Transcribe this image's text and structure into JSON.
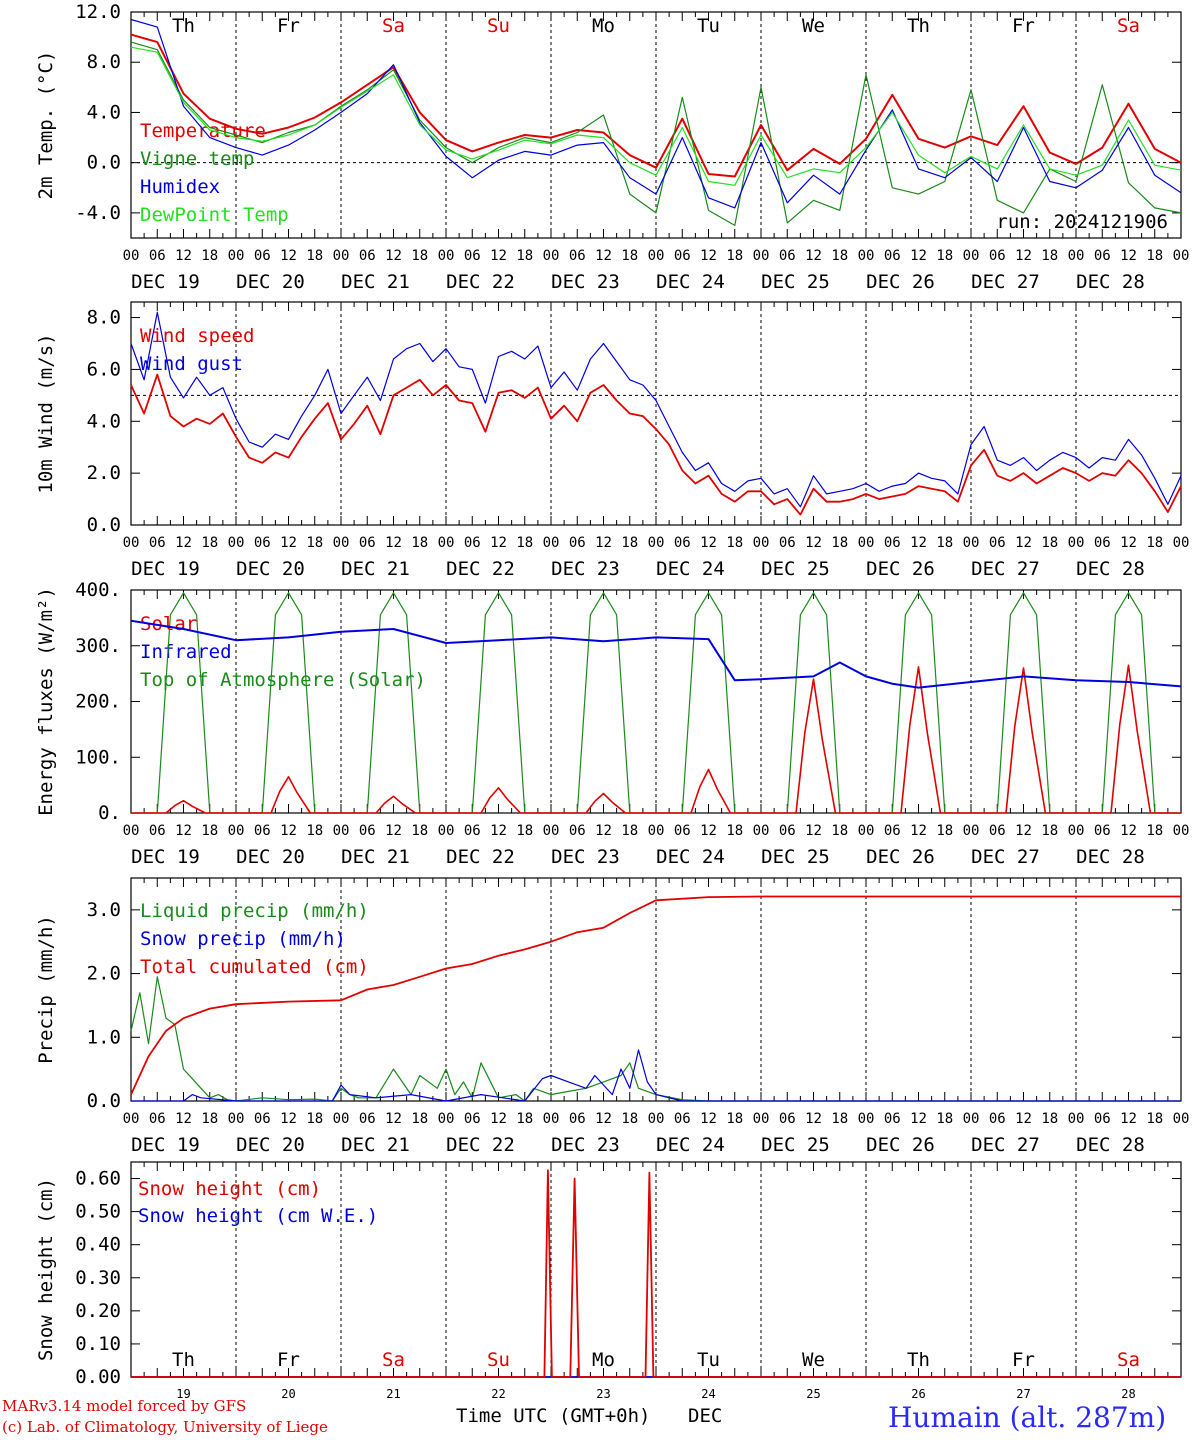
{
  "days": [
    "Th",
    "Fr",
    "Sa",
    "Su",
    "Mo",
    "Tu",
    "We",
    "Th",
    "Fr",
    "Sa"
  ],
  "weekend_color": "#e00000",
  "weekday_color": "#000000",
  "hour_labels": [
    "00",
    "06",
    "12",
    "18"
  ],
  "hour_end_label": "00",
  "date_labels": [
    "DEC 19",
    "DEC 20",
    "DEC 21",
    "DEC 22",
    "DEC 23",
    "DEC 24",
    "DEC 25",
    "DEC 26",
    "DEC 27",
    "DEC 28"
  ],
  "bottom_day_numbers": [
    "19",
    "20",
    "21",
    "22",
    "23",
    "24",
    "25",
    "26",
    "27",
    "28"
  ],
  "run_label": "run: 2024121906",
  "xlabel": "Time UTC (GMT+0h)",
  "xlabel_month": "DEC",
  "footer": {
    "line1": "MARv3.14 model forced by GFS",
    "line2": "(c) Lab. of Climatology, University of Liege",
    "station": "Humain (alt. 287m)"
  },
  "chart_data": [
    {
      "type": "line",
      "ylabel": "2m Temp. (°C)",
      "ylim": [
        -6,
        12
      ],
      "yticks": [
        "12.0",
        "8.0",
        "4.0",
        "0.0",
        "-4.0"
      ],
      "ytick_values": [
        12,
        8,
        4,
        0,
        -4
      ],
      "ref_line": 0,
      "x_hours": [
        0,
        6,
        12,
        18,
        24,
        30,
        36,
        42,
        48,
        54,
        60,
        66,
        72,
        78,
        84,
        90,
        96,
        102,
        108,
        114,
        120,
        126,
        132,
        138,
        144,
        150,
        156,
        162,
        168,
        174,
        180,
        186,
        192,
        198,
        204,
        210,
        216,
        222,
        228,
        234,
        240
      ],
      "series": [
        {
          "name": "Temperature",
          "color": "#e00000",
          "values": [
            10.2,
            9.6,
            5.5,
            3.5,
            2.7,
            2.3,
            2.8,
            3.6,
            4.8,
            6.2,
            7.6,
            4.0,
            1.8,
            0.9,
            1.6,
            2.2,
            2.0,
            2.6,
            2.4,
            0.6,
            -0.4,
            3.5,
            -0.9,
            -1.1,
            3.0,
            -0.6,
            1.1,
            -0.1,
            1.9,
            5.4,
            1.9,
            1.2,
            2.1,
            1.4,
            4.5,
            0.8,
            -0.1,
            1.2,
            4.7,
            1.1,
            0.0
          ]
        },
        {
          "name": "Vigne temp",
          "color": "#1a8a1a",
          "values": [
            9.6,
            9.0,
            5.0,
            2.8,
            2.2,
            1.6,
            2.4,
            3.0,
            4.5,
            5.8,
            7.4,
            3.4,
            1.2,
            0.0,
            1.2,
            2.0,
            1.6,
            2.4,
            3.8,
            -2.5,
            -4.0,
            5.2,
            -3.8,
            -5.0,
            6.0,
            -4.8,
            -3.0,
            -3.8,
            7.0,
            -2.0,
            -2.5,
            -1.5,
            5.8,
            -3.0,
            -4.0,
            -0.5,
            -1.5,
            6.2,
            -1.6,
            -3.6,
            -4.0
          ]
        },
        {
          "name": "Humidex",
          "color": "#0000dd",
          "values": [
            11.4,
            10.8,
            4.5,
            2.0,
            1.2,
            0.6,
            1.4,
            2.6,
            4.0,
            5.5,
            7.8,
            3.2,
            0.5,
            -1.2,
            0.2,
            0.9,
            0.6,
            1.4,
            1.6,
            -1.2,
            -2.5,
            2.0,
            -2.8,
            -3.6,
            1.6,
            -3.2,
            -1.0,
            -2.5,
            1.0,
            4.2,
            -0.5,
            -1.2,
            0.4,
            -1.5,
            2.8,
            -1.5,
            -2.0,
            -0.6,
            2.8,
            -1.0,
            -2.4
          ]
        },
        {
          "name": "DewPoint Temp",
          "color": "#22e022",
          "values": [
            9.2,
            8.8,
            4.8,
            2.6,
            2.0,
            1.7,
            2.2,
            3.0,
            4.4,
            5.7,
            7.0,
            3.0,
            1.0,
            0.3,
            1.0,
            1.8,
            1.5,
            2.2,
            2.0,
            0.0,
            -1.0,
            2.8,
            -1.5,
            -1.8,
            2.2,
            -1.2,
            -0.5,
            -0.8,
            1.2,
            4.0,
            0.6,
            -0.8,
            0.5,
            -0.5,
            3.0,
            -0.5,
            -1.0,
            -0.2,
            3.4,
            -0.2,
            -0.6
          ]
        }
      ]
    },
    {
      "type": "line",
      "ylabel": "10m Wind (m/s)",
      "ylim": [
        0,
        8.6
      ],
      "yticks": [
        "8.0",
        "6.0",
        "4.0",
        "2.0",
        "0.0"
      ],
      "ytick_values": [
        8,
        6,
        4,
        2,
        0
      ],
      "ref_line": 5,
      "x_hours": [
        0,
        3,
        6,
        9,
        12,
        15,
        18,
        21,
        24,
        27,
        30,
        33,
        36,
        39,
        42,
        45,
        48,
        51,
        54,
        57,
        60,
        63,
        66,
        69,
        72,
        75,
        78,
        81,
        84,
        87,
        90,
        93,
        96,
        99,
        102,
        105,
        108,
        111,
        114,
        117,
        120,
        123,
        126,
        129,
        132,
        135,
        138,
        141,
        144,
        147,
        150,
        153,
        156,
        159,
        162,
        165,
        168,
        171,
        174,
        177,
        180,
        183,
        186,
        189,
        192,
        195,
        198,
        201,
        204,
        207,
        210,
        213,
        216,
        219,
        222,
        225,
        228,
        231,
        234,
        237,
        240
      ],
      "series": [
        {
          "name": "Wind speed",
          "color": "#e00000",
          "values": [
            5.4,
            4.3,
            5.8,
            4.2,
            3.8,
            4.1,
            3.9,
            4.3,
            3.4,
            2.6,
            2.4,
            2.8,
            2.6,
            3.4,
            4.1,
            4.7,
            3.3,
            3.9,
            4.6,
            3.5,
            5.0,
            5.3,
            5.6,
            5.0,
            5.4,
            4.8,
            4.7,
            3.6,
            5.1,
            5.2,
            4.9,
            5.3,
            4.1,
            4.6,
            4.0,
            5.1,
            5.4,
            4.8,
            4.3,
            4.2,
            3.7,
            3.1,
            2.1,
            1.6,
            1.9,
            1.2,
            0.9,
            1.3,
            1.3,
            0.8,
            1.0,
            0.4,
            1.4,
            0.9,
            0.9,
            1.0,
            1.2,
            1.0,
            1.1,
            1.2,
            1.5,
            1.4,
            1.3,
            0.9,
            2.3,
            2.9,
            1.9,
            1.7,
            2.0,
            1.6,
            1.9,
            2.2,
            2.0,
            1.7,
            2.0,
            1.9,
            2.5,
            2.0,
            1.3,
            0.5,
            1.5
          ]
        },
        {
          "name": "Wind gust",
          "color": "#0000dd",
          "values": [
            7.0,
            5.6,
            8.2,
            5.7,
            4.9,
            5.7,
            5.0,
            5.3,
            4.1,
            3.2,
            3.0,
            3.5,
            3.3,
            4.2,
            5.0,
            6.0,
            4.3,
            5.0,
            5.7,
            4.8,
            6.4,
            6.8,
            7.0,
            6.3,
            6.8,
            6.1,
            6.0,
            4.7,
            6.5,
            6.7,
            6.4,
            6.9,
            5.3,
            5.9,
            5.2,
            6.4,
            7.0,
            6.3,
            5.6,
            5.4,
            4.8,
            3.8,
            2.8,
            2.1,
            2.4,
            1.6,
            1.3,
            1.7,
            1.8,
            1.2,
            1.4,
            0.7,
            1.9,
            1.2,
            1.3,
            1.4,
            1.6,
            1.3,
            1.5,
            1.6,
            2.0,
            1.8,
            1.7,
            1.2,
            3.1,
            3.8,
            2.5,
            2.3,
            2.6,
            2.1,
            2.5,
            2.8,
            2.6,
            2.2,
            2.6,
            2.5,
            3.3,
            2.7,
            1.8,
            0.8,
            1.9
          ]
        }
      ]
    },
    {
      "type": "line",
      "ylabel": "Energy fluxes (W/m²)",
      "ylim": [
        0,
        400
      ],
      "yticks": [
        "400.",
        "300.",
        "200.",
        "100.",
        "0."
      ],
      "ytick_values": [
        400,
        300,
        200,
        100,
        0
      ],
      "series": [
        {
          "name": "Solar",
          "color": "#e00000",
          "daily_peak": [
            22,
            65,
            30,
            45,
            35,
            78,
            240,
            262,
            260,
            265
          ]
        },
        {
          "name": "Infrared",
          "color": "#0000dd",
          "x_hours": [
            0,
            12,
            24,
            36,
            48,
            60,
            72,
            84,
            96,
            108,
            120,
            132,
            138,
            144,
            156,
            162,
            168,
            174,
            180,
            192,
            204,
            216,
            228,
            240
          ],
          "values": [
            345,
            330,
            310,
            315,
            325,
            330,
            305,
            310,
            315,
            308,
            315,
            312,
            238,
            240,
            245,
            270,
            245,
            232,
            225,
            235,
            245,
            238,
            235,
            227
          ]
        },
        {
          "name": "Top of Atmosphere (Solar)",
          "color": "#1a8a1a",
          "daily_peak": [
            395,
            395,
            395,
            395,
            395,
            395,
            395,
            395,
            395,
            395
          ]
        }
      ]
    },
    {
      "type": "line",
      "ylabel": "Precip (mm/h)",
      "ylim": [
        0,
        3.5
      ],
      "yticks": [
        "3.0",
        "2.0",
        "1.0",
        "0.0"
      ],
      "ytick_values": [
        3,
        2,
        1,
        0
      ],
      "series": [
        {
          "name": "Liquid precip (mm/h)",
          "color": "#1a8a1a",
          "x_hours": [
            0,
            2,
            4,
            6,
            8,
            10,
            12,
            14,
            16,
            18,
            20,
            22,
            24,
            30,
            36,
            42,
            46,
            48,
            50,
            52,
            56,
            60,
            64,
            66,
            70,
            72,
            74,
            76,
            78,
            80,
            84,
            88,
            90,
            92,
            96,
            100,
            104,
            108,
            112,
            114,
            116,
            120,
            126,
            132,
            240
          ],
          "values": [
            1.1,
            1.7,
            0.9,
            1.95,
            1.3,
            1.2,
            0.5,
            0.35,
            0.2,
            0.05,
            0.1,
            0.02,
            0.0,
            0.05,
            0.02,
            0.03,
            0.0,
            0.2,
            0.1,
            0.05,
            0.05,
            0.5,
            0.1,
            0.4,
            0.2,
            0.5,
            0.1,
            0.3,
            0.05,
            0.6,
            0.05,
            0.1,
            0.0,
            0.2,
            0.1,
            0.15,
            0.2,
            0.3,
            0.4,
            0.6,
            0.2,
            0.1,
            0.02,
            0.0,
            0.0
          ]
        },
        {
          "name": "Snow precip (mm/h)",
          "color": "#0000dd",
          "x_hours": [
            0,
            12,
            14,
            16,
            24,
            36,
            46,
            48,
            50,
            56,
            64,
            72,
            80,
            90,
            94,
            96,
            100,
            104,
            106,
            110,
            112,
            114,
            116,
            118,
            120,
            126,
            240
          ],
          "values": [
            0.0,
            0.0,
            0.1,
            0.05,
            0.0,
            0.0,
            0.0,
            0.25,
            0.1,
            0.05,
            0.1,
            0.0,
            0.1,
            0.0,
            0.35,
            0.4,
            0.3,
            0.2,
            0.4,
            0.1,
            0.5,
            0.2,
            0.8,
            0.3,
            0.1,
            0.0,
            0.0
          ]
        },
        {
          "name": "Total cumulated (cm)",
          "color": "#e00000",
          "x_hours": [
            0,
            4,
            8,
            12,
            18,
            24,
            36,
            48,
            54,
            60,
            66,
            72,
            78,
            84,
            90,
            96,
            102,
            108,
            114,
            120,
            132,
            144,
            240
          ],
          "values": [
            0.1,
            0.7,
            1.1,
            1.3,
            1.45,
            1.52,
            1.56,
            1.58,
            1.75,
            1.82,
            1.95,
            2.08,
            2.15,
            2.28,
            2.38,
            2.5,
            2.65,
            2.72,
            2.95,
            3.15,
            3.2,
            3.21,
            3.21
          ]
        }
      ]
    },
    {
      "type": "line",
      "ylabel": "Snow height (cm)",
      "ylim": [
        0,
        0.65
      ],
      "yticks": [
        "0.60",
        "0.50",
        "0.40",
        "0.30",
        "0.20",
        "0.10",
        "0.00"
      ],
      "ytick_values": [
        0.6,
        0.5,
        0.4,
        0.3,
        0.2,
        0.1,
        0.0
      ],
      "series": [
        {
          "name": "Snow height (cm)",
          "color": "#e00000",
          "x_hours": [
            0,
            94.5,
            95.3,
            96.2,
            100.4,
            101.4,
            102.4,
            117.6,
            118.5,
            119.4,
            240
          ],
          "values": [
            0,
            0,
            0.625,
            0,
            0,
            0.6,
            0,
            0,
            0.618,
            0,
            0
          ]
        },
        {
          "name": "Snow height (cm W.E.)",
          "color": "#0000dd",
          "x_hours": [
            0,
            240
          ],
          "values": [
            0,
            0
          ]
        }
      ]
    }
  ]
}
